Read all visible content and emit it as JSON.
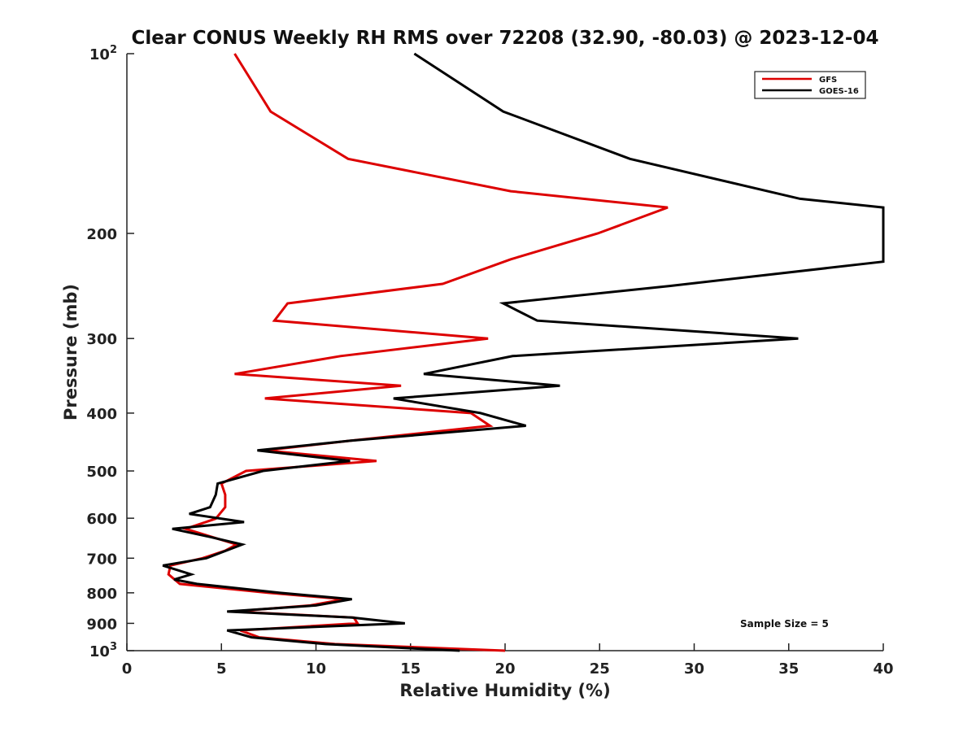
{
  "chart_data": {
    "type": "line",
    "title": "Clear CONUS Weekly RH RMS over 72208 (32.90, -80.03) @ 2023-12-04",
    "xlabel": "Relative Humidity (%)",
    "ylabel": "Pressure (mb)",
    "xlim": [
      0,
      40
    ],
    "ylim": [
      1000,
      100
    ],
    "y_scale": "log",
    "y_reversed": true,
    "x_ticks": [
      0,
      5,
      10,
      15,
      20,
      25,
      30,
      35,
      40
    ],
    "y_ticks": [
      100,
      200,
      300,
      400,
      500,
      600,
      700,
      800,
      900,
      1000
    ],
    "y_tick_labels": [
      "10^2",
      "200",
      "300",
      "400",
      "500",
      "600",
      "700",
      "800",
      "900",
      "10^3"
    ],
    "grid": false,
    "legend_position": "top-right",
    "annotation": "Sample Size = 5",
    "series": [
      {
        "name": "GFS",
        "color": "#dd0000",
        "points": [
          {
            "x": 5.7,
            "p": 100
          },
          {
            "x": 7.6,
            "p": 125
          },
          {
            "x": 11.7,
            "p": 150
          },
          {
            "x": 20.3,
            "p": 170
          },
          {
            "x": 28.6,
            "p": 181
          },
          {
            "x": 24.9,
            "p": 200
          },
          {
            "x": 20.3,
            "p": 221
          },
          {
            "x": 16.7,
            "p": 243
          },
          {
            "x": 8.5,
            "p": 262
          },
          {
            "x": 7.8,
            "p": 280
          },
          {
            "x": 19.1,
            "p": 300
          },
          {
            "x": 11.3,
            "p": 321
          },
          {
            "x": 5.7,
            "p": 344
          },
          {
            "x": 14.5,
            "p": 360
          },
          {
            "x": 7.3,
            "p": 378
          },
          {
            "x": 18.2,
            "p": 400
          },
          {
            "x": 19.2,
            "p": 420
          },
          {
            "x": 11.8,
            "p": 445
          },
          {
            "x": 7.3,
            "p": 462
          },
          {
            "x": 13.2,
            "p": 481
          },
          {
            "x": 6.3,
            "p": 500
          },
          {
            "x": 5.0,
            "p": 525
          },
          {
            "x": 5.2,
            "p": 548
          },
          {
            "x": 5.2,
            "p": 575
          },
          {
            "x": 4.7,
            "p": 601
          },
          {
            "x": 3.1,
            "p": 625
          },
          {
            "x": 4.5,
            "p": 645
          },
          {
            "x": 5.8,
            "p": 664
          },
          {
            "x": 5.2,
            "p": 680
          },
          {
            "x": 4.0,
            "p": 700
          },
          {
            "x": 2.3,
            "p": 720
          },
          {
            "x": 2.2,
            "p": 745
          },
          {
            "x": 2.8,
            "p": 773
          },
          {
            "x": 7.5,
            "p": 800
          },
          {
            "x": 11.5,
            "p": 820
          },
          {
            "x": 9.7,
            "p": 840
          },
          {
            "x": 5.6,
            "p": 860
          },
          {
            "x": 12.0,
            "p": 880
          },
          {
            "x": 12.2,
            "p": 900
          },
          {
            "x": 6.0,
            "p": 925
          },
          {
            "x": 7.0,
            "p": 950
          },
          {
            "x": 11.0,
            "p": 975
          },
          {
            "x": 20.0,
            "p": 1000
          }
        ]
      },
      {
        "name": "GOES-16",
        "color": "#000000",
        "points": [
          {
            "x": 15.2,
            "p": 100
          },
          {
            "x": 19.9,
            "p": 125
          },
          {
            "x": 26.6,
            "p": 150
          },
          {
            "x": 35.6,
            "p": 175
          },
          {
            "x": 40.0,
            "p": 181
          },
          {
            "x": 40.0,
            "p": 223
          },
          {
            "x": 28.7,
            "p": 245
          },
          {
            "x": 19.9,
            "p": 262
          },
          {
            "x": 21.7,
            "p": 280
          },
          {
            "x": 35.5,
            "p": 300
          },
          {
            "x": 20.4,
            "p": 321
          },
          {
            "x": 15.7,
            "p": 344
          },
          {
            "x": 22.9,
            "p": 360
          },
          {
            "x": 14.1,
            "p": 378
          },
          {
            "x": 18.7,
            "p": 400
          },
          {
            "x": 21.1,
            "p": 420
          },
          {
            "x": 11.8,
            "p": 445
          },
          {
            "x": 6.9,
            "p": 462
          },
          {
            "x": 11.8,
            "p": 481
          },
          {
            "x": 7.2,
            "p": 500
          },
          {
            "x": 4.8,
            "p": 525
          },
          {
            "x": 4.7,
            "p": 548
          },
          {
            "x": 4.4,
            "p": 575
          },
          {
            "x": 3.3,
            "p": 590
          },
          {
            "x": 6.2,
            "p": 609
          },
          {
            "x": 2.4,
            "p": 625
          },
          {
            "x": 4.4,
            "p": 645
          },
          {
            "x": 6.1,
            "p": 664
          },
          {
            "x": 4.2,
            "p": 700
          },
          {
            "x": 1.9,
            "p": 720
          },
          {
            "x": 3.4,
            "p": 745
          },
          {
            "x": 2.5,
            "p": 760
          },
          {
            "x": 3.7,
            "p": 773
          },
          {
            "x": 8.1,
            "p": 800
          },
          {
            "x": 11.9,
            "p": 820
          },
          {
            "x": 10.0,
            "p": 840
          },
          {
            "x": 5.3,
            "p": 860
          },
          {
            "x": 11.9,
            "p": 880
          },
          {
            "x": 14.7,
            "p": 900
          },
          {
            "x": 5.3,
            "p": 925
          },
          {
            "x": 6.6,
            "p": 950
          },
          {
            "x": 10.5,
            "p": 975
          },
          {
            "x": 17.6,
            "p": 1000
          }
        ]
      }
    ]
  }
}
